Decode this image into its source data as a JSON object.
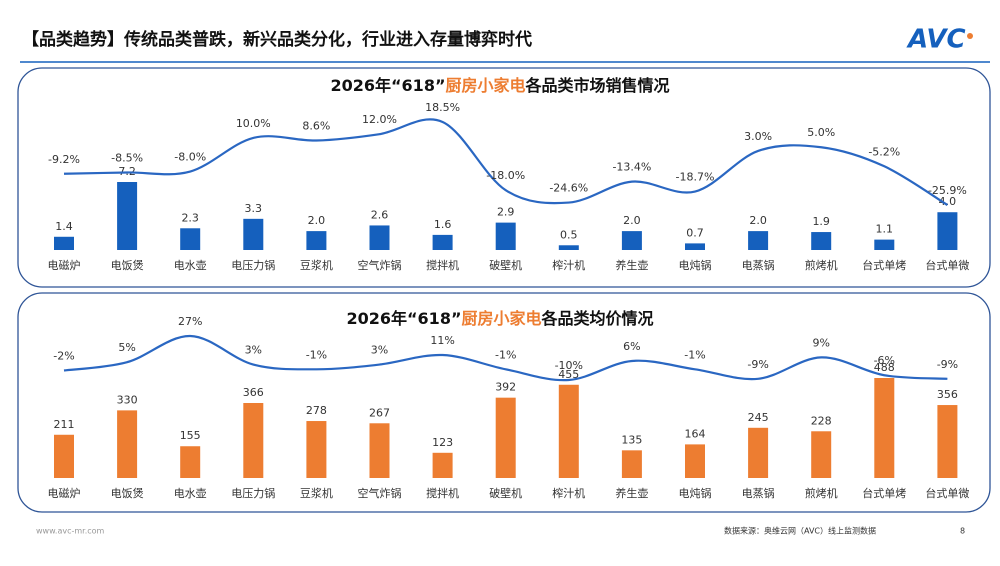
{
  "header": {
    "title": "【品类趋势】传统品类普跌，新兴品类分化，行业进入存量博弈时代",
    "logo": "AVC"
  },
  "chart_data": [
    {
      "type": "combo",
      "title_parts": [
        "2026年“618”",
        "厨房小家电",
        "各品类市场销售情况"
      ],
      "categories": [
        "电磁炉",
        "电饭煲",
        "电水壶",
        "电压力锅",
        "豆浆机",
        "空气炸锅",
        "搅拌机",
        "破壁机",
        "榨汁机",
        "养生壶",
        "电炖锅",
        "电蒸锅",
        "煎烤机",
        "台式单烤",
        "台式单微"
      ],
      "series": [
        {
          "type": "bar",
          "color": "#1560bd",
          "values": [
            1.4,
            7.2,
            2.3,
            3.3,
            2.0,
            2.6,
            1.6,
            2.9,
            0.5,
            2.0,
            0.7,
            2.0,
            1.9,
            1.1,
            4.0
          ],
          "value_labels": [
            "1.4",
            "7.2",
            "2.3",
            "3.3",
            "2.0",
            "2.6",
            "1.6",
            "2.9",
            "0.5",
            "2.0",
            "0.7",
            "2.0",
            "1.9",
            "1.1",
            "4.0"
          ]
        },
        {
          "type": "line",
          "color": "#2a67c2",
          "values": [
            -9.2,
            -8.5,
            -8.0,
            10.0,
            8.6,
            12.0,
            18.5,
            -18.0,
            -24.6,
            -13.4,
            -18.7,
            3.0,
            5.0,
            -5.2,
            -25.9
          ],
          "value_labels": [
            "-9.2%",
            "-8.5%",
            "-8.0%",
            "10.0%",
            "8.6%",
            "12.0%",
            "18.5%",
            "-18.0%",
            "-24.6%",
            "-13.4%",
            "-18.7%",
            "3.0%",
            "5.0%",
            "-5.2%",
            "-25.9%"
          ]
        }
      ]
    },
    {
      "type": "combo",
      "title_parts": [
        "2026年“618”",
        "厨房小家电",
        "各品类均价情况"
      ],
      "categories": [
        "电磁炉",
        "电饭煲",
        "电水壶",
        "电压力锅",
        "豆浆机",
        "空气炸锅",
        "搅拌机",
        "破壁机",
        "榨汁机",
        "养生壶",
        "电炖锅",
        "电蒸锅",
        "煎烤机",
        "台式单烤",
        "台式单微"
      ],
      "series": [
        {
          "type": "bar",
          "color": "#ed7d31",
          "values": [
            211,
            330,
            155,
            366,
            278,
            267,
            123,
            392,
            455,
            135,
            164,
            245,
            228,
            488,
            356
          ]
        },
        {
          "type": "line",
          "color": "#2a67c2",
          "values": [
            -2,
            5,
            27,
            3,
            -1,
            3,
            11,
            -1,
            -10,
            6,
            -1,
            -9,
            9,
            -6,
            -9
          ],
          "value_labels": [
            "-2%",
            "5%",
            "27%",
            "3%",
            "-1%",
            "3%",
            "11%",
            "-1%",
            "-10%",
            "6%",
            "-1%",
            "-9%",
            "9%",
            "-6%",
            "-9%"
          ]
        }
      ]
    }
  ],
  "footer": {
    "website": "www.avc-mr.com",
    "source": "数据来源：奥维云网（AVC）线上监测数据",
    "page": 8
  }
}
